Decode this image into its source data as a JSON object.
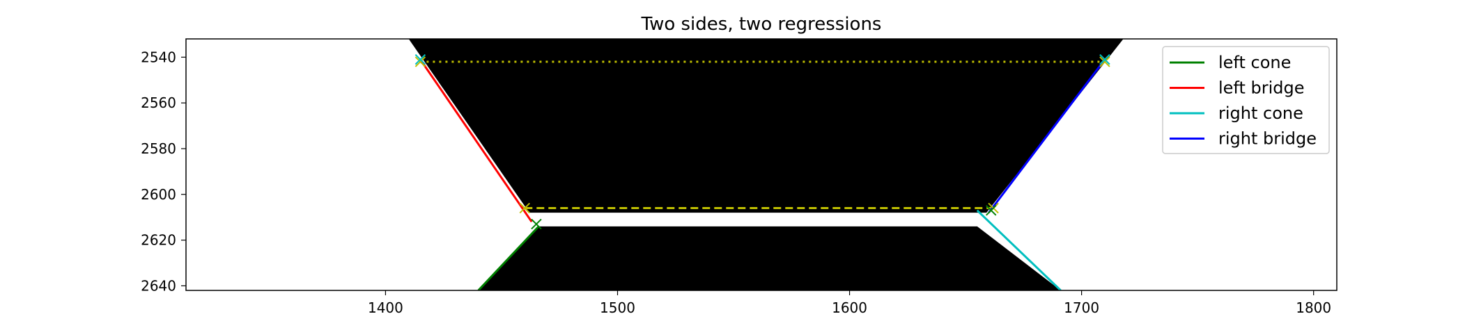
{
  "chart_data": {
    "type": "line",
    "title": "Two sides, two regressions",
    "xlabel": "",
    "ylabel": "",
    "xlim": [
      1314,
      1810
    ],
    "ylim": [
      2642,
      2532
    ],
    "y_inverted": true,
    "x_ticks": [
      1400,
      1500,
      1600,
      1700,
      1800
    ],
    "y_ticks": [
      2540,
      2560,
      2580,
      2600,
      2620,
      2640
    ],
    "grid": false,
    "legend_position": "top-right",
    "background_image": {
      "description_color": "#000000",
      "shape_polygon_top": [
        [
          1410,
          2532
        ],
        [
          1462,
          2608
        ],
        [
          1659,
          2608
        ],
        [
          1718,
          2532
        ]
      ],
      "shape_polygon_bottom": [
        [
          1466,
          2614
        ],
        [
          1440,
          2642
        ],
        [
          1691,
          2642
        ],
        [
          1655,
          2614
        ]
      ]
    },
    "series": [
      {
        "name": "left cone",
        "color": "#008000",
        "style": "solid",
        "x": [
          1440,
          1466
        ],
        "y": [
          2642,
          2614
        ]
      },
      {
        "name": "left bridge",
        "color": "#ff0000",
        "style": "solid",
        "x": [
          1415,
          1463
        ],
        "y": [
          2541,
          2612
        ]
      },
      {
        "name": "right cone",
        "color": "#00bfbf",
        "style": "solid",
        "x": [
          1655,
          1691
        ],
        "y": [
          2607,
          2642
        ]
      },
      {
        "name": "right bridge",
        "color": "#0000ff",
        "style": "solid",
        "x": [
          1660,
          1710
        ],
        "y": [
          2608,
          2541
        ]
      }
    ],
    "reference_lines": [
      {
        "color": "#bfbf00",
        "style": "dotted",
        "x": [
          1415,
          1710
        ],
        "y": [
          2542,
          2542
        ]
      },
      {
        "color": "#bfbf00",
        "style": "dashed",
        "x": [
          1460,
          1662
        ],
        "y": [
          2606,
          2606
        ]
      }
    ],
    "markers": [
      {
        "x": 1415,
        "y": 2542,
        "color": "#bfbf00",
        "symbol": "x"
      },
      {
        "x": 1710,
        "y": 2542,
        "color": "#bfbf00",
        "symbol": "x"
      },
      {
        "x": 1460,
        "y": 2606,
        "color": "#bfbf00",
        "symbol": "x"
      },
      {
        "x": 1662,
        "y": 2606,
        "color": "#bfbf00",
        "symbol": "x"
      },
      {
        "x": 1415,
        "y": 2541,
        "color": "#00bfbf",
        "symbol": "x"
      },
      {
        "x": 1710,
        "y": 2541,
        "color": "#00bfbf",
        "symbol": "x"
      },
      {
        "x": 1465,
        "y": 2613,
        "color": "#008000",
        "symbol": "x"
      },
      {
        "x": 1661,
        "y": 2607,
        "color": "#008000",
        "symbol": "x"
      }
    ]
  }
}
